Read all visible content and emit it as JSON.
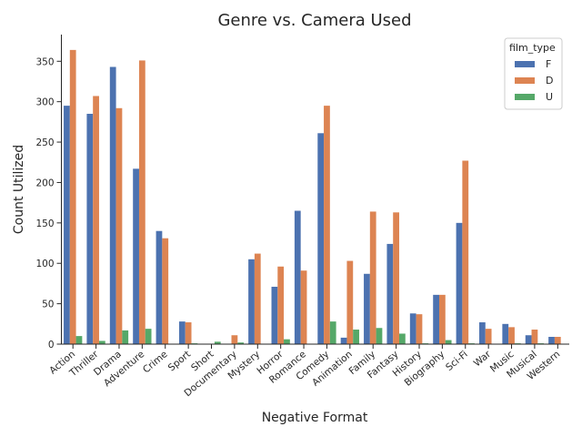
{
  "chart_data": {
    "type": "bar",
    "title": "Genre vs. Camera Used",
    "xlabel": "Negative Format",
    "ylabel": "Count Utilized",
    "ylim": [
      0,
      383
    ],
    "yticks": [
      0,
      50,
      100,
      150,
      200,
      250,
      300,
      350
    ],
    "grid": false,
    "legend_title": "film_type",
    "legend_position": "top-right",
    "categories": [
      "Action",
      "Thriller",
      "Drama",
      "Adventure",
      "Crime",
      "Sport",
      "Short",
      "Documentary",
      "Mystery",
      "Horror",
      "Romance",
      "Comedy",
      "Animation",
      "Family",
      "Fantasy",
      "History",
      "Biography",
      "Sci-Fi",
      "War",
      "Music",
      "Musical",
      "Western"
    ],
    "series": [
      {
        "name": "F",
        "color": "#4c72b0",
        "values": [
          295,
          285,
          343,
          217,
          140,
          28,
          0,
          0,
          105,
          71,
          165,
          261,
          8,
          87,
          124,
          38,
          61,
          150,
          27,
          25,
          11,
          9
        ]
      },
      {
        "name": "D",
        "color": "#dd8452",
        "values": [
          364,
          307,
          292,
          351,
          131,
          27,
          0,
          11,
          112,
          96,
          91,
          295,
          103,
          164,
          163,
          37,
          61,
          227,
          19,
          21,
          18,
          9
        ]
      },
      {
        "name": "U",
        "color": "#55a868",
        "values": [
          10,
          4,
          17,
          19,
          0,
          1,
          3,
          2,
          0,
          6,
          0,
          28,
          18,
          20,
          13,
          1,
          5,
          1,
          0,
          1,
          1,
          0
        ]
      }
    ]
  }
}
